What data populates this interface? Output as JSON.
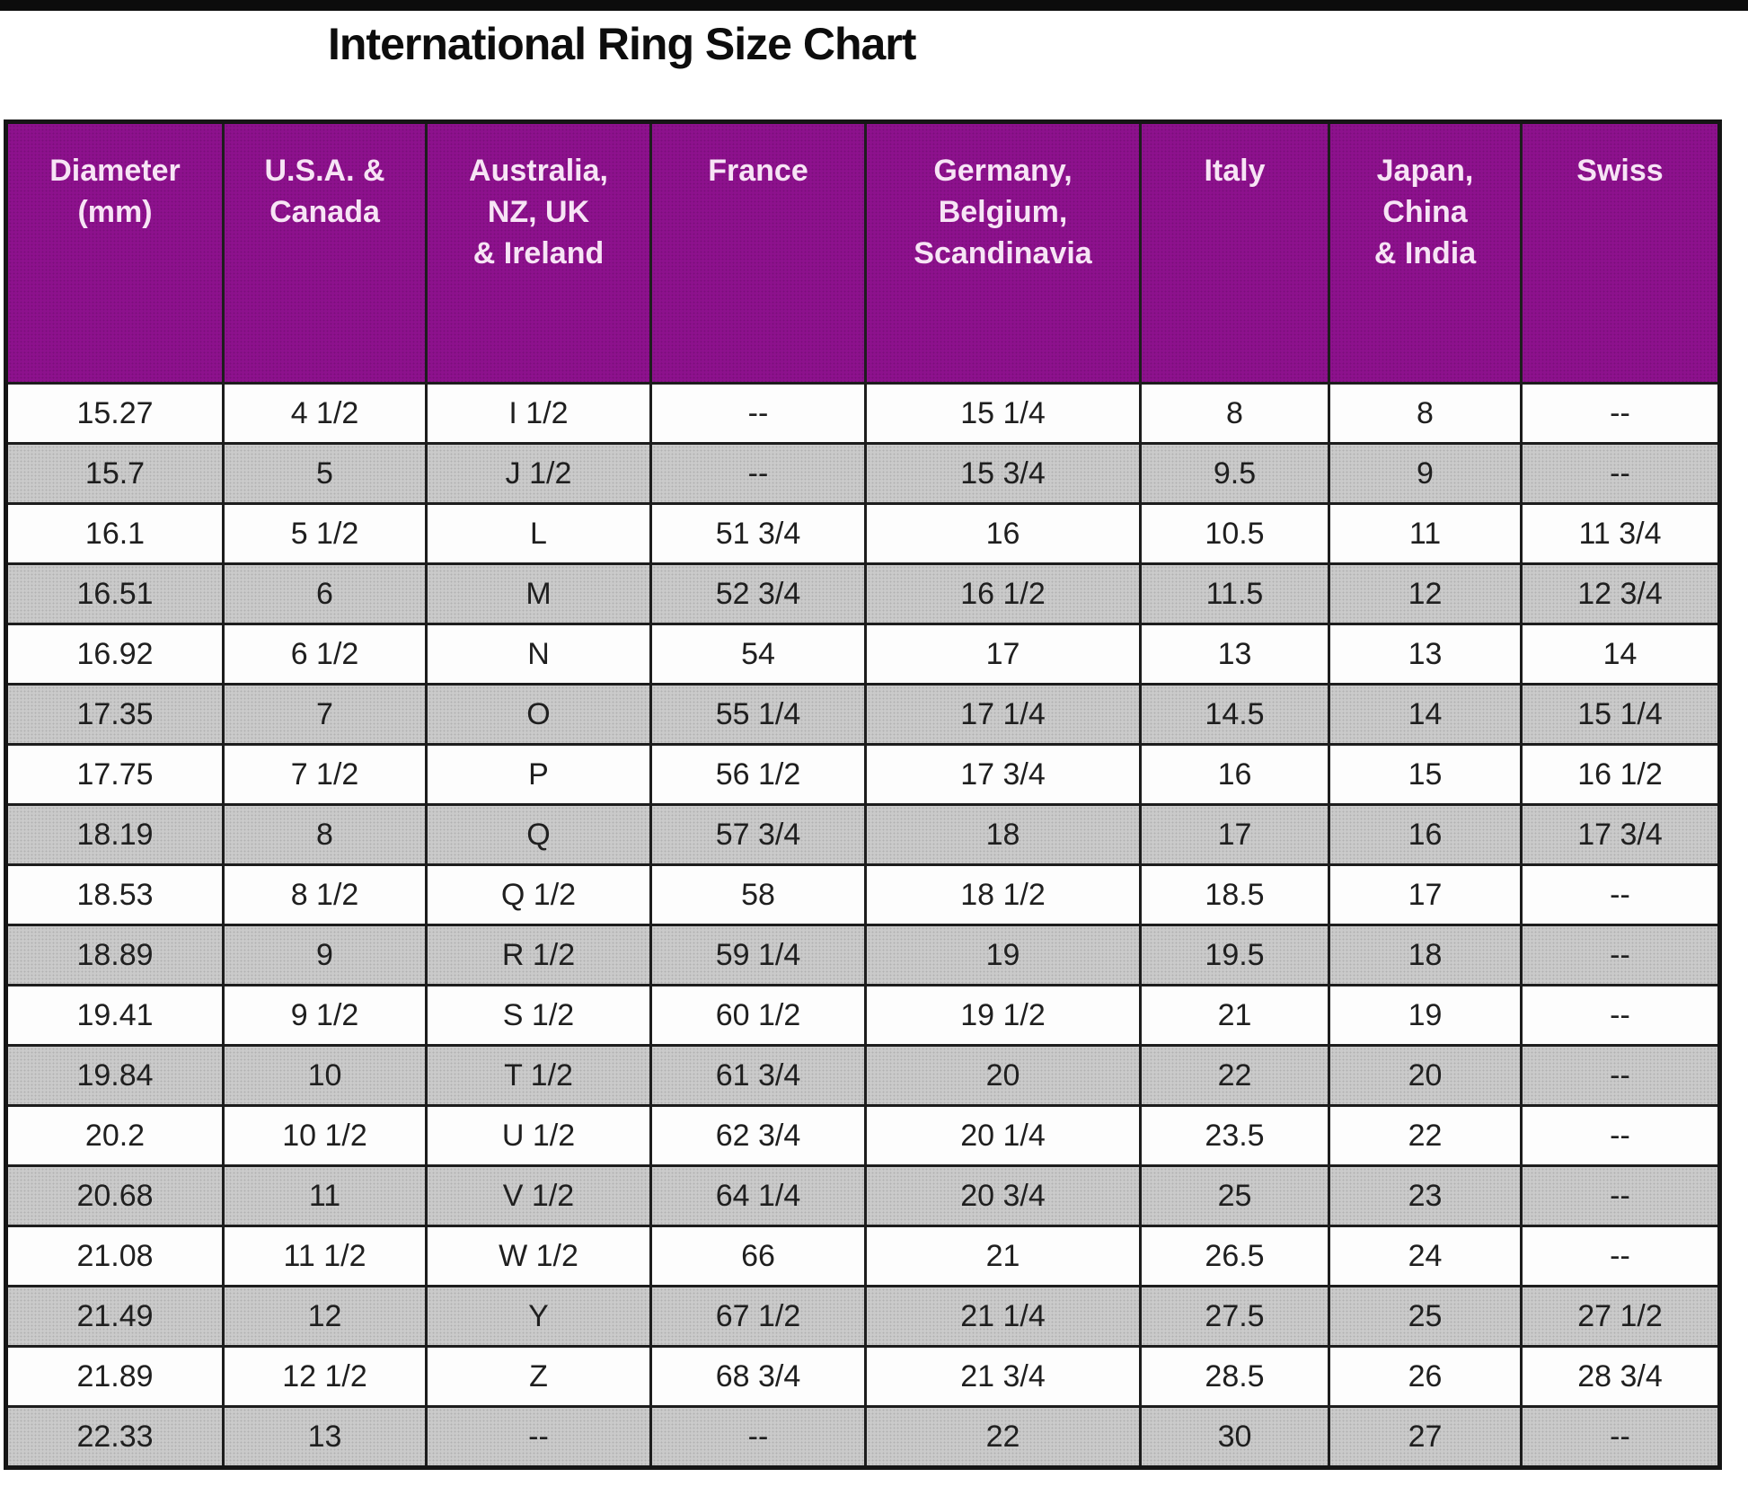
{
  "title": "International Ring Size Chart",
  "colors": {
    "header_bg": "#8d118d",
    "header_text": "#f7e4f5",
    "row_bg": "#fdfdfd",
    "row_alt_bg": "#cacaca",
    "border": "#1d1d1d",
    "top_bar": "#0c0c0c"
  },
  "chart_data": {
    "type": "table",
    "title": "International Ring Size Chart",
    "columns": [
      "Diameter\n(mm)",
      "U.S.A. &\nCanada",
      "Australia,\nNZ, UK\n& Ireland",
      "France",
      "Germany,\nBelgium,\nScandinavia",
      "Italy",
      "Japan,\nChina\n& India",
      "Swiss"
    ],
    "rows": [
      [
        "15.27",
        "4 1/2",
        "I 1/2",
        "--",
        "15 1/4",
        "8",
        "8",
        "--"
      ],
      [
        "15.7",
        "5",
        "J 1/2",
        "--",
        "15 3/4",
        "9.5",
        "9",
        "--"
      ],
      [
        "16.1",
        "5 1/2",
        "L",
        "51 3/4",
        "16",
        "10.5",
        "11",
        "11 3/4"
      ],
      [
        "16.51",
        "6",
        "M",
        "52 3/4",
        "16 1/2",
        "11.5",
        "12",
        "12 3/4"
      ],
      [
        "16.92",
        "6 1/2",
        "N",
        "54",
        "17",
        "13",
        "13",
        "14"
      ],
      [
        "17.35",
        "7",
        "O",
        "55 1/4",
        "17 1/4",
        "14.5",
        "14",
        "15 1/4"
      ],
      [
        "17.75",
        "7 1/2",
        "P",
        "56 1/2",
        "17 3/4",
        "16",
        "15",
        "16 1/2"
      ],
      [
        "18.19",
        "8",
        "Q",
        "57 3/4",
        "18",
        "17",
        "16",
        "17 3/4"
      ],
      [
        "18.53",
        "8 1/2",
        "Q 1/2",
        "58",
        "18 1/2",
        "18.5",
        "17",
        "--"
      ],
      [
        "18.89",
        "9",
        "R 1/2",
        "59 1/4",
        "19",
        "19.5",
        "18",
        "--"
      ],
      [
        "19.41",
        "9 1/2",
        "S 1/2",
        "60 1/2",
        "19 1/2",
        "21",
        "19",
        "--"
      ],
      [
        "19.84",
        "10",
        "T 1/2",
        "61 3/4",
        "20",
        "22",
        "20",
        "--"
      ],
      [
        "20.2",
        "10 1/2",
        "U 1/2",
        "62 3/4",
        "20 1/4",
        "23.5",
        "22",
        "--"
      ],
      [
        "20.68",
        "11",
        "V 1/2",
        "64 1/4",
        "20 3/4",
        "25",
        "23",
        "--"
      ],
      [
        "21.08",
        "11 1/2",
        "W 1/2",
        "66",
        "21",
        "26.5",
        "24",
        "--"
      ],
      [
        "21.49",
        "12",
        "Y",
        "67 1/2",
        "21 1/4",
        "27.5",
        "25",
        "27 1/2"
      ],
      [
        "21.89",
        "12 1/2",
        "Z",
        "68 3/4",
        "21 3/4",
        "28.5",
        "26",
        "28 3/4"
      ],
      [
        "22.33",
        "13",
        "--",
        "--",
        "22",
        "30",
        "27",
        "--"
      ]
    ]
  }
}
